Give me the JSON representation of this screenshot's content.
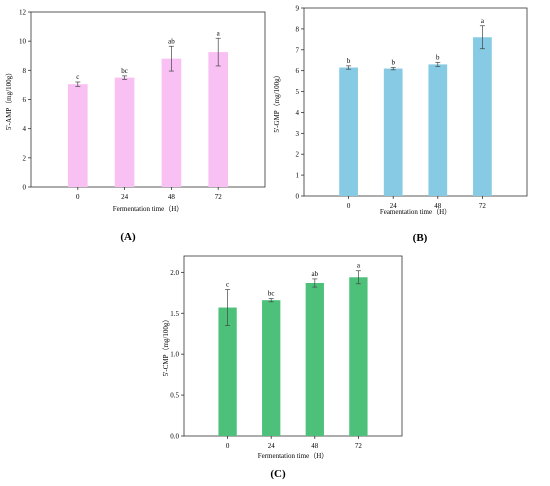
{
  "panels": [
    {
      "panel_label": "(A)",
      "chart_data": {
        "type": "bar",
        "categories": [
          "0",
          "24",
          "48",
          "72"
        ],
        "values": [
          7.05,
          7.5,
          8.8,
          9.25
        ],
        "errors": [
          0.15,
          0.12,
          0.85,
          0.95
        ],
        "significance": [
          "c",
          "bc",
          "ab",
          "a"
        ],
        "xlabel": "Fermentation time（H）",
        "ylabel": "5'-AMP（mg/100g）",
        "ylim": [
          0,
          12
        ],
        "yticks": [
          "0",
          "2",
          "4",
          "6",
          "8",
          "10",
          "12"
        ],
        "color": "#f9c0f4",
        "grid": false
      }
    },
    {
      "panel_label": "(B)",
      "chart_data": {
        "type": "bar",
        "categories": [
          "0",
          "24",
          "48",
          "72"
        ],
        "values": [
          6.15,
          6.1,
          6.3,
          7.6
        ],
        "errors": [
          0.08,
          0.06,
          0.1,
          0.55
        ],
        "significance": [
          "b",
          "b",
          "b",
          "a"
        ],
        "xlabel": "Feamentation time（H）",
        "ylabel": "5'-GMP（mg/100g）",
        "ylim": [
          0,
          9
        ],
        "yticks": [
          "0",
          "1",
          "2",
          "3",
          "4",
          "5",
          "6",
          "7",
          "8",
          "9"
        ],
        "color": "#86cbe3",
        "grid": false
      }
    },
    {
      "panel_label": "(C)",
      "chart_data": {
        "type": "bar",
        "categories": [
          "0",
          "24",
          "48",
          "72"
        ],
        "values": [
          1.57,
          1.66,
          1.87,
          1.94
        ],
        "errors": [
          0.22,
          0.02,
          0.05,
          0.08
        ],
        "significance": [
          "c",
          "bc",
          "ab",
          "a"
        ],
        "xlabel": "Fermentation time（H）",
        "ylabel": "5'-CMP（mg/100g）",
        "ylim": [
          0,
          2.2
        ],
        "yticks": [
          "0.0",
          "0.5",
          "1.0",
          "1.5",
          "2.0"
        ],
        "color": "#4dc07a",
        "grid": false
      }
    }
  ]
}
